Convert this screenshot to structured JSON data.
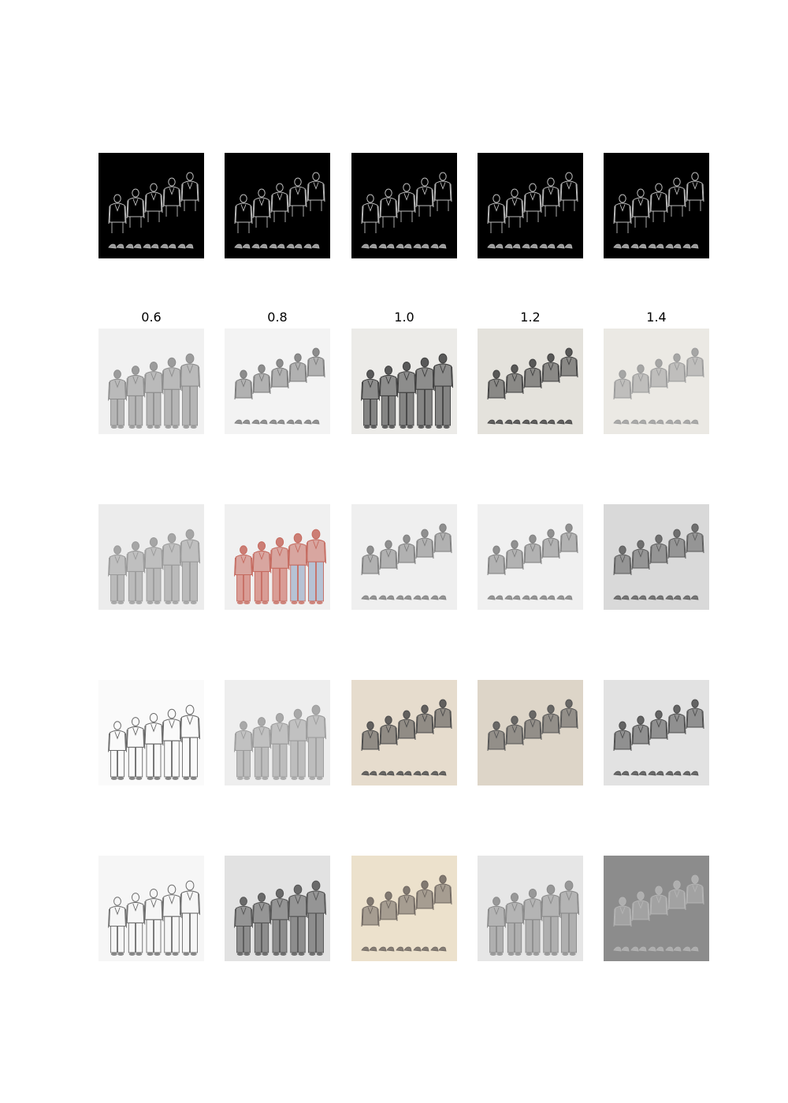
{
  "column_labels": [
    "0.6",
    "0.8",
    "1.0",
    "1.2",
    "1.4"
  ],
  "rows": [
    {
      "name": "control-edge-map",
      "panels": [
        {
          "bg": "#000000",
          "fg": "#bdbdbd",
          "style": "outline",
          "shoes": true
        },
        {
          "bg": "#000000",
          "fg": "#bdbdbd",
          "style": "outline",
          "shoes": true
        },
        {
          "bg": "#000000",
          "fg": "#bdbdbd",
          "style": "outline",
          "shoes": true
        },
        {
          "bg": "#000000",
          "fg": "#bdbdbd",
          "style": "outline",
          "shoes": true
        },
        {
          "bg": "#000000",
          "fg": "#bdbdbd",
          "style": "outline",
          "shoes": true
        }
      ]
    },
    {
      "name": "sample-row-1",
      "panels": [
        {
          "bg": "#f1f1f1",
          "fg": "#8d8d8d",
          "style": "full",
          "shoes": false
        },
        {
          "bg": "#f3f3f3",
          "fg": "#7a7a7a",
          "style": "upper",
          "shoes": true
        },
        {
          "bg": "#ecebe8",
          "fg": "#3f3f3f",
          "style": "full",
          "shoes": false
        },
        {
          "bg": "#e4e2dc",
          "fg": "#404040",
          "style": "upper",
          "shoes": true
        },
        {
          "bg": "#ebe9e4",
          "fg": "#9a9a9a",
          "style": "upper",
          "shoes": true
        }
      ]
    },
    {
      "name": "sample-row-2",
      "panels": [
        {
          "bg": "#ececec",
          "fg": "#9a9a9a",
          "style": "full",
          "shoes": false
        },
        {
          "bg": "#f0f0f0",
          "fg": "#c56a5f",
          "style": "full-color",
          "shoes": false
        },
        {
          "bg": "#efefef",
          "fg": "#7e7e7e",
          "style": "upper",
          "shoes": true
        },
        {
          "bg": "#f0f0f0",
          "fg": "#808080",
          "style": "upper",
          "shoes": true
        },
        {
          "bg": "#d9d9d9",
          "fg": "#5c5c5c",
          "style": "upper",
          "shoes": true
        }
      ]
    },
    {
      "name": "sample-row-3",
      "panels": [
        {
          "bg": "#fafafa",
          "fg": "#6a6a6a",
          "style": "full-outline",
          "shoes": false
        },
        {
          "bg": "#eeeeee",
          "fg": "#9c9c9c",
          "style": "full",
          "shoes": false
        },
        {
          "bg": "#e6dccd",
          "fg": "#4a4a4a",
          "style": "upper",
          "shoes": true
        },
        {
          "bg": "#ddd5c8",
          "fg": "#555555",
          "style": "upper",
          "shoes": false
        },
        {
          "bg": "#e2e2e2",
          "fg": "#4d4d4d",
          "style": "upper",
          "shoes": true
        }
      ]
    },
    {
      "name": "sample-row-4",
      "panels": [
        {
          "bg": "#f6f6f6",
          "fg": "#6e6e6e",
          "style": "full-outline",
          "shoes": false
        },
        {
          "bg": "#e2e2e2",
          "fg": "#555555",
          "style": "full",
          "shoes": false
        },
        {
          "bg": "#ece1cc",
          "fg": "#6e6660",
          "style": "upper",
          "shoes": true
        },
        {
          "bg": "#e6e6e6",
          "fg": "#8a8a8a",
          "style": "full",
          "shoes": false
        },
        {
          "bg": "#8c8c8c",
          "fg": "#b5b5b5",
          "style": "upper",
          "shoes": true
        }
      ]
    }
  ]
}
